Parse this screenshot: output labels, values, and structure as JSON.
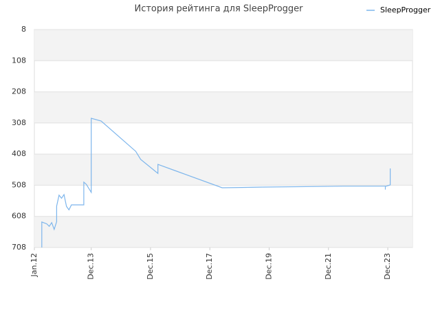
{
  "chart_data": {
    "type": "line",
    "title": "История рейтинга для SleepProgger",
    "x": [
      "2012-04",
      "2012-04",
      "2012-06",
      "2012-07",
      "2012-08",
      "2012-09",
      "2012-10",
      "2012-10",
      "2012-11",
      "2012-12",
      "2013-01",
      "2013-02",
      "2013-03",
      "2013-04",
      "2013-09",
      "2013-09",
      "2013-10",
      "2013-12",
      "2013-12",
      "2014-04",
      "2015-06",
      "2015-08",
      "2016-03",
      "2016-03",
      "2018-05",
      "2019-09",
      "2022-06",
      "2023-11",
      "2023-11",
      "2023-11",
      "2024-01",
      "2024-01"
    ],
    "series": [
      {
        "name": "SleepProgger",
        "color": "#7cb5ec",
        "values": [
          708,
          626,
          632,
          640,
          628,
          650,
          625,
          575,
          540,
          550,
          538,
          576,
          587,
          571,
          571,
          498,
          505,
          531,
          293,
          302,
          399,
          425,
          470,
          441,
          516,
          514,
          511,
          511,
          522,
          512,
          507,
          454
        ]
      }
    ],
    "xlim": [
      "2012-01",
      "2024-10"
    ],
    "xticks": [
      {
        "value": "2012-01",
        "label": "Jan.12"
      },
      {
        "value": "2013-12",
        "label": "Dec.13"
      },
      {
        "value": "2015-12",
        "label": "Dec.15"
      },
      {
        "value": "2017-12",
        "label": "Dec.17"
      },
      {
        "value": "2019-12",
        "label": "Dec.19"
      },
      {
        "value": "2021-12",
        "label": "Dec.21"
      },
      {
        "value": "2023-12",
        "label": "Dec.23"
      }
    ],
    "ylim": [
      708,
      8
    ],
    "yticks": [
      8,
      108,
      208,
      308,
      408,
      508,
      608,
      708
    ],
    "legend": "top-right"
  }
}
